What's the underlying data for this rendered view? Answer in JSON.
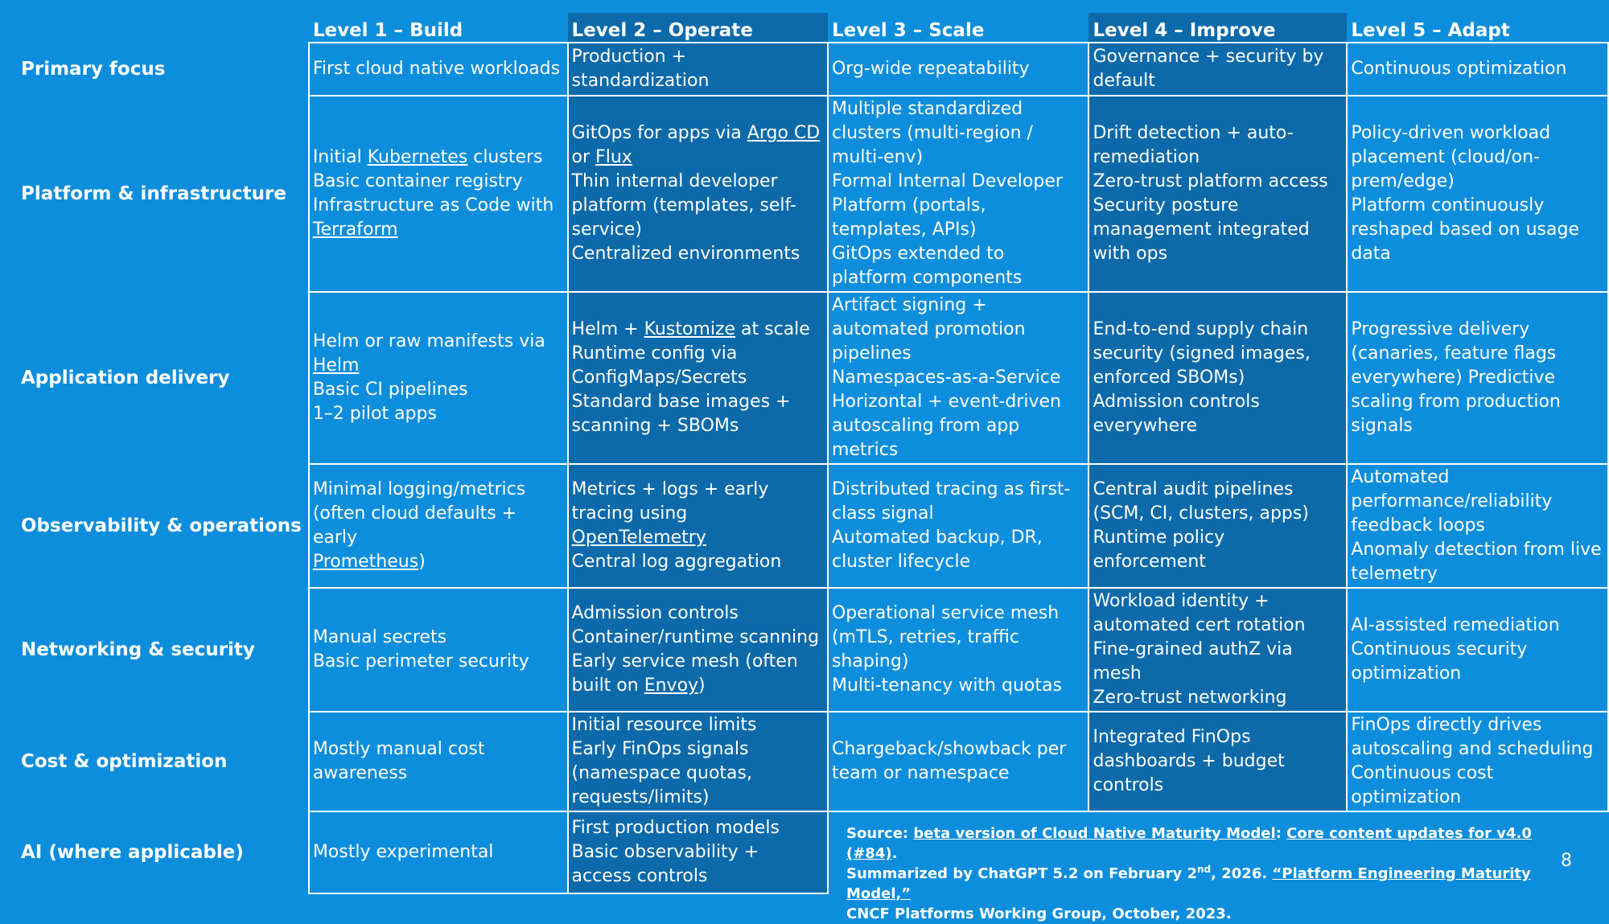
{
  "levels": [
    "Level 1 – Build",
    "Level 2 – Operate",
    "Level 3 – Scale",
    "Level 4 – Improve",
    "Level 5 – Adapt"
  ],
  "rows": {
    "primary": {
      "label": "Primary focus",
      "c1": [
        "First cloud native workloads"
      ],
      "c2": [
        "Production + standardization"
      ],
      "c3": [
        "Org-wide repeatability"
      ],
      "c4": [
        "Governance + security by default"
      ],
      "c5": [
        "Continuous optimization"
      ]
    },
    "platform": {
      "label": "Platform & infrastructure",
      "c1": {
        "l1a": "Initial ",
        "l1link": "Kubernetes",
        "l1b": " clusters",
        "l2": "Basic container registry",
        "l3": "Infrastructure as Code with",
        "l4link": "Terraform"
      },
      "c2": {
        "l1a": "GitOps for apps via ",
        "l1link": "Argo CD",
        "l2a": "or ",
        "l2link": "Flux",
        "l3": "Thin internal developer platform (templates, self-service)",
        "l4": "Centralized environments"
      },
      "c3": [
        "Multiple standardized clusters (multi-region / multi-env)",
        "Formal Internal Developer Platform (portals, templates, APIs)",
        "GitOps extended to platform components"
      ],
      "c4": [
        "Drift detection + auto-remediation",
        "Zero-trust platform access",
        "Security posture management integrated with ops"
      ],
      "c5": [
        "Policy-driven workload placement (cloud/on-prem/edge)",
        "Platform continuously reshaped based on usage data"
      ]
    },
    "appdelivery": {
      "label": "Application delivery",
      "c1": {
        "l1": "Helm or raw manifests via",
        "l2link": "Helm",
        "l3": "Basic CI pipelines",
        "l4": "1–2 pilot apps"
      },
      "c2": {
        "l1a": "Helm + ",
        "l1link": "Kustomize",
        "l1b": " at scale",
        "l2": "Runtime config via ConfigMaps/Secrets",
        "l3": "Standard base images + scanning + SBOMs"
      },
      "c3": [
        "Artifact signing + automated promotion pipelines",
        "Namespaces-as-a-Service",
        "Horizontal + event-driven autoscaling from app metrics"
      ],
      "c4": [
        "End-to-end supply chain security (signed images, enforced SBOMs)",
        "Admission controls everywhere"
      ],
      "c5": [
        "Progressive delivery (canaries, feature flags everywhere) Predictive scaling from production signals"
      ]
    },
    "observability": {
      "label": "Observability & operations",
      "c1": {
        "l1": "Minimal logging/metrics (often cloud defaults + early",
        "l2link": "Prometheus",
        "l2b": ")"
      },
      "c2": {
        "l1": "Metrics + logs + early tracing using",
        "l2link": "OpenTelemetry",
        "l3": "Central log aggregation"
      },
      "c3": [
        "Distributed tracing as first-class signal",
        "Automated backup, DR, cluster lifecycle"
      ],
      "c4": [
        "Central audit pipelines (SCM, CI, clusters, apps)",
        "Runtime policy enforcement"
      ],
      "c5": [
        "Automated performance/reliability feedback loops",
        "Anomaly detection from live telemetry"
      ]
    },
    "networking": {
      "label": "Networking & security",
      "c1": [
        "Manual secrets",
        "Basic perimeter security"
      ],
      "c2": {
        "l1": "Admission controls",
        "l2": "Container/runtime scanning",
        "l3a": "Early service mesh (often built on ",
        "l3link": "Envoy",
        "l3b": ")"
      },
      "c3": [
        "Operational service mesh (mTLS, retries, traffic shaping)",
        "Multi-tenancy with quotas"
      ],
      "c4": [
        "Workload identity + automated cert rotation",
        "Fine-grained authZ via mesh",
        "Zero-trust networking"
      ],
      "c5": [
        "AI-assisted remediation",
        "Continuous security optimization"
      ]
    },
    "cost": {
      "label": "Cost & optimization",
      "c1": [
        "Mostly manual cost awareness"
      ],
      "c2": [
        "Initial resource limits",
        "Early FinOps signals (namespace quotas, requests/limits)"
      ],
      "c3": [
        "Chargeback/showback per team or namespace"
      ],
      "c4": [
        "Integrated FinOps dashboards + budget controls"
      ],
      "c5": [
        "FinOps directly drives autoscaling and scheduling",
        "Continuous cost optimization"
      ]
    },
    "ai": {
      "label": "AI (where applicable)",
      "c1": [
        "Mostly experimental"
      ],
      "c2": [
        "First production models",
        "Basic observability + access controls"
      ]
    }
  },
  "footer": {
    "source_label": "Source: ",
    "link1": "beta version of Cloud Native Maturity Model",
    "sep1": ": ",
    "link2": "Core content updates for v4.0 (#84)",
    "end1": ".",
    "line2a": "Summarized by ChatGPT 5.2 on February 2",
    "line2sup": "nd",
    "line2b": ", 2026. ",
    "link3": "“Platform Engineering Maturity Model,”",
    "line3": "CNCF Platforms Working Group, October, 2023."
  },
  "page_number": "8",
  "colors": {
    "background": "#0d8edc",
    "dark_column": "#0c6aaa",
    "text": "#ffffff",
    "border": "#ffffff"
  }
}
